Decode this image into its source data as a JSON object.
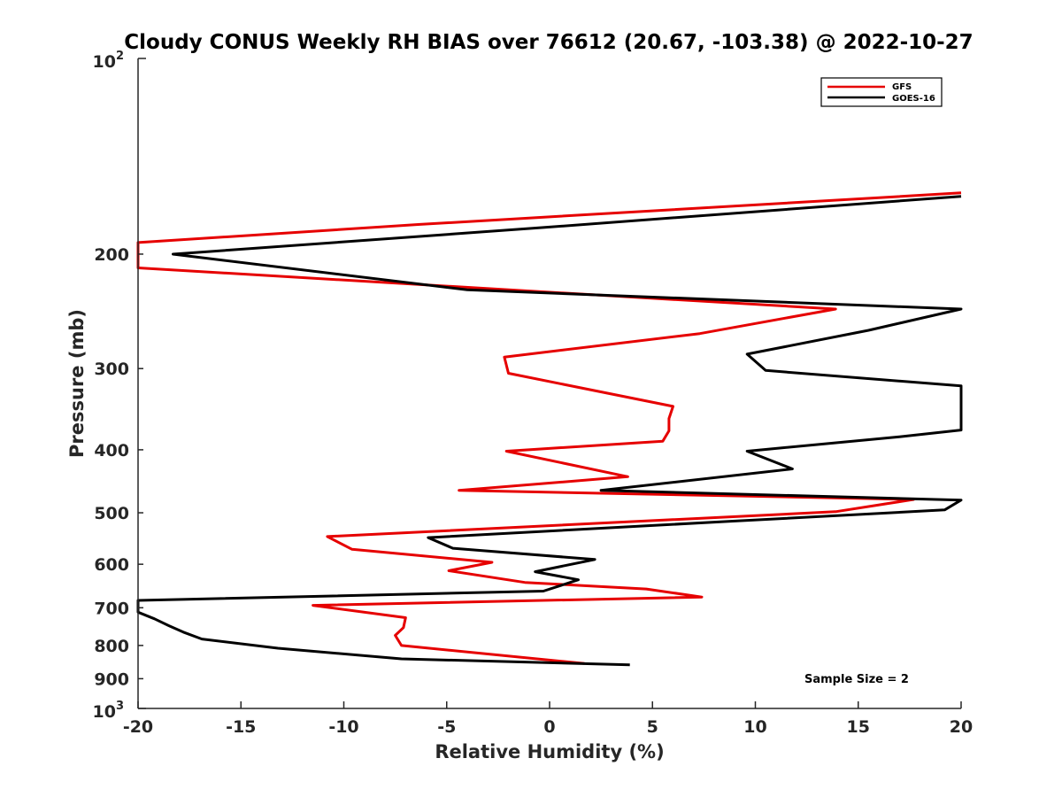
{
  "chart_data": {
    "type": "line",
    "title": "Cloudy CONUS Weekly RH BIAS over 76612 (20.67, -103.38) @ 2022-10-27",
    "xlabel": "Relative Humidity (%)",
    "ylabel": "Pressure (mb)",
    "xlim": [
      -20,
      20
    ],
    "ylim": [
      100,
      1000
    ],
    "yscale": "log",
    "y_reversed": true,
    "x_ticks": [
      -20,
      -15,
      -10,
      -5,
      0,
      5,
      10,
      15,
      20
    ],
    "x_tick_labels": [
      "-20",
      "-15",
      "-10",
      "-5",
      "0",
      "5",
      "10",
      "15",
      "20"
    ],
    "y_ticks": [
      200,
      300,
      400,
      500,
      600,
      700,
      800,
      900
    ],
    "y_tick_labels": [
      "200",
      "300",
      "400",
      "500",
      "600",
      "700",
      "800",
      "900"
    ],
    "y_top_label": {
      "base": "10",
      "exp": "2"
    },
    "y_bottom_label": {
      "base": "10",
      "exp": "3"
    },
    "legend_position": "top-right",
    "annotation": "Sample Size = 2",
    "series": [
      {
        "name": "GFS",
        "color": "#e60000",
        "points": [
          [
            20,
            161
          ],
          [
            -6.3,
            180
          ],
          [
            -20,
            192
          ],
          [
            -20,
            210
          ],
          [
            13.9,
            243
          ],
          [
            7.3,
            265
          ],
          [
            -2.2,
            288
          ],
          [
            -2,
            305
          ],
          [
            6,
            343
          ],
          [
            5.8,
            358
          ],
          [
            5.8,
            374
          ],
          [
            5.5,
            388
          ],
          [
            -2.1,
            402
          ],
          [
            3.8,
            440
          ],
          [
            -4.4,
            462
          ],
          [
            17.7,
            477
          ],
          [
            13.9,
            498
          ],
          [
            -10.8,
            544
          ],
          [
            -9.6,
            569
          ],
          [
            -2.8,
            596
          ],
          [
            -4.9,
            614
          ],
          [
            -1.2,
            640
          ],
          [
            4.7,
            655
          ],
          [
            7.4,
            674
          ],
          [
            -11.5,
            694
          ],
          [
            -7,
            725
          ],
          [
            -7.1,
            751
          ],
          [
            -7.5,
            772
          ],
          [
            -7.2,
            800
          ],
          [
            1.7,
            853
          ]
        ]
      },
      {
        "name": "GOES-16",
        "color": "#000000",
        "points": [
          [
            20,
            163
          ],
          [
            -0.3,
            182
          ],
          [
            -18.3,
            200
          ],
          [
            -4,
            227
          ],
          [
            20,
            243
          ],
          [
            15.5,
            262
          ],
          [
            9.6,
            285
          ],
          [
            10.5,
            302
          ],
          [
            20,
            319
          ],
          [
            20,
            373
          ],
          [
            17,
            382
          ],
          [
            9.6,
            402
          ],
          [
            11.8,
            428
          ],
          [
            2.5,
            462
          ],
          [
            20,
            478
          ],
          [
            19.2,
            495
          ],
          [
            8.9,
            515
          ],
          [
            -5.9,
            546
          ],
          [
            -4.7,
            567
          ],
          [
            2.2,
            590
          ],
          [
            -0.7,
            616
          ],
          [
            1.4,
            634
          ],
          [
            -0.3,
            660
          ],
          [
            -20,
            682
          ],
          [
            -20,
            711
          ],
          [
            -19.2,
            728
          ],
          [
            -18.5,
            746
          ],
          [
            -17.8,
            763
          ],
          [
            -16.9,
            782
          ],
          [
            -13.2,
            808
          ],
          [
            -7.2,
            839
          ],
          [
            3.9,
            857
          ]
        ]
      }
    ]
  }
}
